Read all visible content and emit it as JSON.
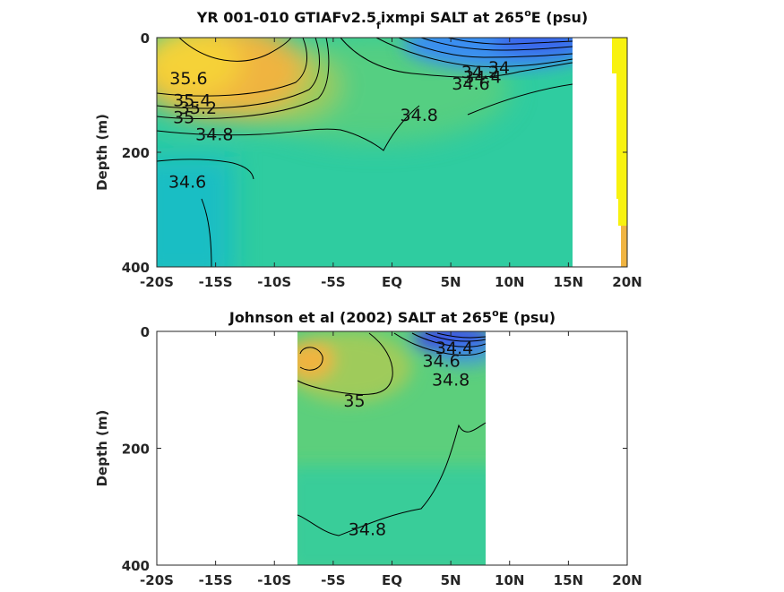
{
  "colors": {
    "fresh": "#3c4ae6",
    "mid_blue": "#3a8ef0",
    "cyan": "#17bcc8",
    "teal": "#2fcca0",
    "green": "#5ccf7c",
    "yellow_green": "#a6cb58",
    "orange": "#f0b441",
    "salty": "#f5d238",
    "bright_yellow": "#f8f20f",
    "contour": "#000000"
  },
  "chart_data": [
    {
      "type": "heatmap",
      "title": "YR 001-010 GTIAFv2.5_fixmpi SALT at 265°E (psu)",
      "title_parts": [
        "YR 001-010 GTIAFv2.5",
        "f",
        "ixmpi SALT at 265",
        "o",
        "E (psu)"
      ],
      "ylabel": "Depth (m)",
      "xlim": [
        -20,
        20
      ],
      "ylim": [
        0,
        400
      ],
      "y_reversed": true,
      "xticks": [
        -20,
        -15,
        -10,
        -5,
        0,
        5,
        10,
        15,
        20
      ],
      "xtick_labels": [
        "-20S",
        "-15S",
        "-10S",
        "-5S",
        "EQ",
        "5N",
        "10N",
        "15N",
        "20N"
      ],
      "yticks": [
        0,
        200,
        400
      ],
      "ytick_labels": [
        "0",
        "200",
        "400"
      ],
      "data_extent": [
        -20,
        15.3
      ],
      "contour_levels": [
        34,
        34.2,
        34.4,
        34.6,
        34.8,
        35,
        35.2,
        35.4,
        35.6
      ],
      "contour_labels": [
        {
          "text": "35.6",
          "x": -17.3,
          "y": 73
        },
        {
          "text": "35.4",
          "x": -17.0,
          "y": 111
        },
        {
          "text": "35.2",
          "x": -16.5,
          "y": 124
        },
        {
          "text": "35",
          "x": -17.7,
          "y": 141
        },
        {
          "text": "34.8",
          "x": -15.1,
          "y": 170
        },
        {
          "text": "34.6",
          "x": -17.4,
          "y": 253
        },
        {
          "text": "34.8",
          "x": 2.3,
          "y": 137
        },
        {
          "text": "34",
          "x": 9.1,
          "y": 54
        },
        {
          "text": "34.2",
          "x": 7.5,
          "y": 62
        },
        {
          "text": "34.4",
          "x": 7.7,
          "y": 70
        },
        {
          "text": "34.6",
          "x": 6.7,
          "y": 82
        }
      ]
    },
    {
      "type": "heatmap",
      "title": "Johnson et al (2002) SALT at 265°E (psu)",
      "title_parts": [
        "Johnson et al (2002) SALT at 265",
        "o",
        "E (psu)"
      ],
      "ylabel": "Depth (m)",
      "xlim": [
        -20,
        20
      ],
      "ylim": [
        0,
        400
      ],
      "y_reversed": true,
      "xticks": [
        -20,
        -15,
        -10,
        -5,
        0,
        5,
        10,
        15,
        20
      ],
      "xtick_labels": [
        "-20S",
        "-15S",
        "-10S",
        "-5S",
        "EQ",
        "5N",
        "10N",
        "15N",
        "20N"
      ],
      "yticks": [
        0,
        200,
        400
      ],
      "ytick_labels": [
        "0",
        "200",
        "400"
      ],
      "data_extent": [
        -8,
        8
      ],
      "contour_levels": [
        34,
        34.2,
        34.4,
        34.6,
        34.8,
        35
      ],
      "contour_labels": [
        {
          "text": "35",
          "x": -3.2,
          "y": 120
        },
        {
          "text": "34.8",
          "x": -2.1,
          "y": 340
        },
        {
          "text": "34.4",
          "x": 5.3,
          "y": 30
        },
        {
          "text": "34.6",
          "x": 4.2,
          "y": 52
        },
        {
          "text": "34.8",
          "x": 5.0,
          "y": 84
        }
      ]
    }
  ]
}
